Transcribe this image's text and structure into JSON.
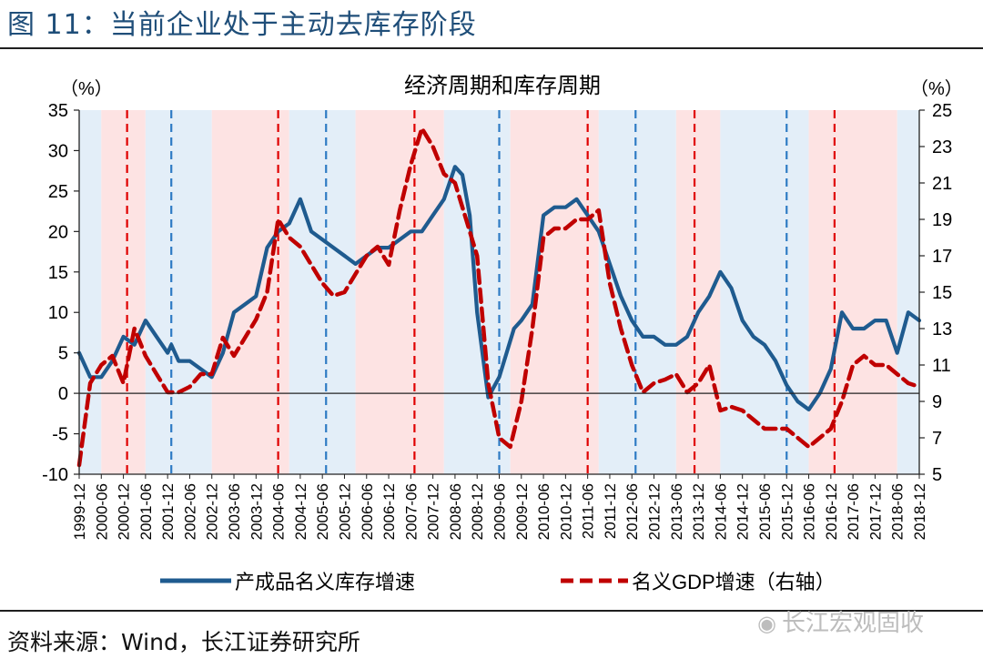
{
  "figure": {
    "title": "图 11：当前企业处于主动去库存阶段",
    "source": "资料来源：Wind，长江证券研究所",
    "watermark": "长江宏观固收",
    "watermark_icon": "wechat-icon"
  },
  "colors": {
    "inventory": "#1f5b8f",
    "gdp": "#c00000",
    "red_band": "#fde3e3",
    "blue_band": "#e3eef8",
    "red_marker": "#e00000",
    "blue_marker": "#2e7bc4",
    "title": "#1f4e79"
  },
  "chart_data": {
    "type": "line",
    "title": "经济周期和库存周期",
    "left_unit": "（%）",
    "right_unit": "（%）",
    "ylim_left": [
      -10,
      35
    ],
    "yticks_left": [
      -10,
      -5,
      0,
      5,
      10,
      15,
      20,
      25,
      30,
      35
    ],
    "ylim_right": [
      5,
      25
    ],
    "yticks_right": [
      5,
      7,
      9,
      11,
      13,
      15,
      17,
      19,
      21,
      23,
      25
    ],
    "xlim": [
      "1999-12",
      "2018-12"
    ],
    "x_tick_labels": [
      "1999-12",
      "2000-06",
      "2000-12",
      "2001-06",
      "2001-12",
      "2002-06",
      "2002-12",
      "2003-06",
      "2003-12",
      "2004-06",
      "2004-12",
      "2005-06",
      "2005-12",
      "2006-06",
      "2006-12",
      "2007-06",
      "2007-12",
      "2008-06",
      "2008-12",
      "2009-06",
      "2009-12",
      "2010-06",
      "2010-12",
      "2011-06",
      "2011-12",
      "2012-06",
      "2012-12",
      "2013-06",
      "2013-12",
      "2014-06",
      "2014-12",
      "2015-06",
      "2015-12",
      "2016-06",
      "2016-12",
      "2017-06",
      "2017-12",
      "2018-06",
      "2018-12"
    ],
    "legend_position": "bottom",
    "series": [
      {
        "name": "产成品名义库存增速",
        "axis": "left",
        "style": "solid",
        "x": [
          "1999-12",
          "2000-03",
          "2000-06",
          "2000-09",
          "2000-12",
          "2001-03",
          "2001-06",
          "2001-09",
          "2001-12",
          "2002-01",
          "2002-03",
          "2002-06",
          "2002-09",
          "2002-12",
          "2003-01",
          "2003-03",
          "2003-06",
          "2003-09",
          "2003-12",
          "2004-03",
          "2004-06",
          "2004-09",
          "2004-12",
          "2005-03",
          "2005-06",
          "2005-09",
          "2005-12",
          "2006-03",
          "2006-06",
          "2006-09",
          "2006-12",
          "2007-03",
          "2007-06",
          "2007-09",
          "2007-12",
          "2008-03",
          "2008-06",
          "2008-08",
          "2008-10",
          "2008-12",
          "2009-03",
          "2009-06",
          "2009-08",
          "2009-10",
          "2009-12",
          "2010-03",
          "2010-06",
          "2010-09",
          "2010-12",
          "2011-03",
          "2011-06",
          "2011-09",
          "2011-12",
          "2012-03",
          "2012-06",
          "2012-09",
          "2012-12",
          "2013-03",
          "2013-06",
          "2013-09",
          "2013-12",
          "2014-03",
          "2014-06",
          "2014-09",
          "2014-12",
          "2015-03",
          "2015-06",
          "2015-09",
          "2015-12",
          "2016-03",
          "2016-06",
          "2016-09",
          "2016-12",
          "2017-03",
          "2017-06",
          "2017-09",
          "2017-12",
          "2018-03",
          "2018-06",
          "2018-09",
          "2018-12"
        ],
        "values": [
          5,
          2,
          2,
          4,
          7,
          6,
          9,
          7,
          5,
          6,
          4,
          4,
          3,
          2,
          3,
          5,
          10,
          11,
          12,
          18,
          20,
          21,
          24,
          20,
          19,
          18,
          17,
          16,
          17,
          18,
          18,
          19,
          20,
          20,
          22,
          24,
          28,
          27,
          22,
          10,
          -0.5,
          2,
          5,
          8,
          9,
          11,
          22,
          23,
          23,
          24,
          22,
          20,
          16,
          12,
          9,
          7,
          7,
          6,
          6,
          7,
          10,
          12,
          15,
          13,
          9,
          7,
          6,
          4,
          1,
          -1,
          -2,
          0,
          3,
          10,
          8,
          8,
          9,
          9,
          5,
          10,
          9
        ]
      },
      {
        "name": "名义GDP增速（右轴）",
        "axis": "right",
        "style": "dashed",
        "x": [
          "1999-12",
          "2000-03",
          "2000-06",
          "2000-09",
          "2000-12",
          "2001-03",
          "2001-06",
          "2001-09",
          "2001-12",
          "2002-03",
          "2002-06",
          "2002-09",
          "2002-12",
          "2003-03",
          "2003-06",
          "2003-09",
          "2003-12",
          "2004-03",
          "2004-06",
          "2004-09",
          "2004-12",
          "2005-03",
          "2005-06",
          "2005-09",
          "2005-12",
          "2006-03",
          "2006-06",
          "2006-09",
          "2006-12",
          "2007-03",
          "2007-06",
          "2007-09",
          "2007-12",
          "2008-03",
          "2008-06",
          "2008-09",
          "2008-12",
          "2009-03",
          "2009-06",
          "2009-09",
          "2009-12",
          "2010-03",
          "2010-06",
          "2010-09",
          "2010-12",
          "2011-03",
          "2011-06",
          "2011-09",
          "2011-12",
          "2012-03",
          "2012-06",
          "2012-09",
          "2012-12",
          "2013-03",
          "2013-06",
          "2013-09",
          "2013-12",
          "2014-03",
          "2014-06",
          "2014-09",
          "2014-12",
          "2015-03",
          "2015-06",
          "2015-09",
          "2015-12",
          "2016-03",
          "2016-06",
          "2016-09",
          "2016-12",
          "2017-03",
          "2017-06",
          "2017-09",
          "2017-12",
          "2018-03",
          "2018-06",
          "2018-09",
          "2018-12"
        ],
        "values": [
          5.5,
          10,
          11,
          11.5,
          10,
          13,
          11.5,
          10.5,
          9.5,
          9.5,
          9.8,
          10.5,
          10.5,
          12.5,
          11.5,
          12.5,
          13.5,
          15,
          19,
          18,
          17.5,
          16.5,
          15.5,
          14.8,
          15,
          16,
          17,
          17.5,
          16.5,
          19.5,
          22,
          24,
          23,
          21.5,
          21,
          19,
          17,
          10,
          7,
          6.5,
          9,
          13,
          18,
          18.5,
          18.5,
          19,
          19,
          19.5,
          15.5,
          13,
          11,
          9.5,
          10,
          10.2,
          10.5,
          9.5,
          10,
          11,
          8.5,
          8.7,
          8.5,
          8,
          7.5,
          7.5,
          7.5,
          7,
          6.5,
          7,
          7.5,
          9,
          11,
          11.5,
          11,
          11,
          10.5,
          10,
          9.8
        ]
      }
    ],
    "shaded_periods": [
      {
        "start": "1999-12",
        "end": "2000-06",
        "color": "blue"
      },
      {
        "start": "2000-06",
        "end": "2001-06",
        "color": "red"
      },
      {
        "start": "2001-06",
        "end": "2002-12",
        "color": "blue"
      },
      {
        "start": "2002-12",
        "end": "2004-09",
        "color": "red"
      },
      {
        "start": "2004-09",
        "end": "2006-03",
        "color": "blue"
      },
      {
        "start": "2006-03",
        "end": "2008-03",
        "color": "red"
      },
      {
        "start": "2008-03",
        "end": "2009-09",
        "color": "blue"
      },
      {
        "start": "2009-09",
        "end": "2011-09",
        "color": "red"
      },
      {
        "start": "2011-09",
        "end": "2013-06",
        "color": "blue"
      },
      {
        "start": "2013-06",
        "end": "2014-06",
        "color": "red"
      },
      {
        "start": "2014-06",
        "end": "2016-06",
        "color": "blue"
      },
      {
        "start": "2016-06",
        "end": "2018-06",
        "color": "red"
      },
      {
        "start": "2018-06",
        "end": "2018-12",
        "color": "blue"
      }
    ],
    "red_markers": [
      "2001-01",
      "2004-06",
      "2007-07",
      "2011-06",
      "2013-11",
      "2017-01"
    ],
    "blue_markers": [
      "2002-01",
      "2005-07",
      "2009-06",
      "2012-07",
      "2015-12"
    ]
  }
}
